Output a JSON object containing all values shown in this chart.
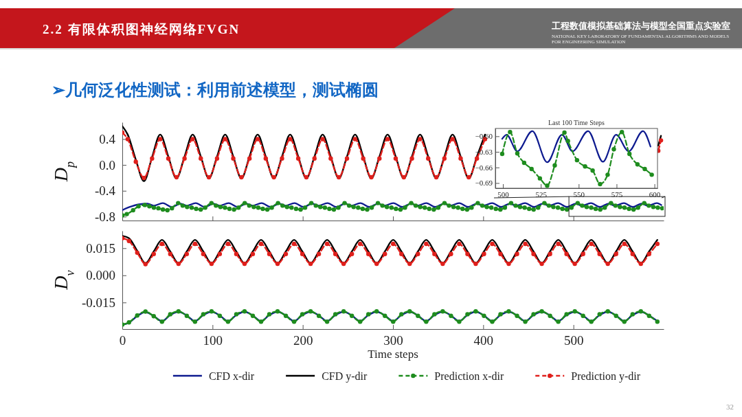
{
  "chart_data": [
    {
      "type": "line",
      "title": "➢几何泛化性测试：利用前述模型，测试椭圆",
      "annotations": [
        "2.2 有限体积图神经网络FVGN",
        "工程数值模拟基础算法与模型全国重点实验室",
        "NATIONAL KEY LABORATORY OF FUNDAMENTAL ALGORITHMS AND MODELS FOR ENGINEERING SIMULATION",
        "32"
      ],
      "ylabel": "D$_{p}$",
      "xlim": [
        0,
        600
      ],
      "ylim": [
        -0.86,
        0.66
      ],
      "xticks": [
        0,
        100,
        200,
        300,
        400,
        500
      ],
      "yticks": [
        0.4,
        {
          "value": 0,
          "label": "0.0"
        },
        -0.4,
        -0.8
      ],
      "tick_labels": "y",
      "series": [
        {
          "color": "#0d1a8f",
          "line_style": "solid",
          "marker": "none",
          "x": [
            0,
            8.4,
            18.4,
            27.9,
            34.9,
            44.9,
            54.9,
            64.4,
            71.4,
            81.4,
            91.4,
            100.9,
            107.9,
            117.9,
            127.9,
            137.4,
            144.4,
            154.4,
            164.4,
            173.9,
            180.9,
            190.9,
            200.9,
            210.4,
            217.4,
            227.4,
            237.4,
            246.9,
            253.9,
            263.9,
            273.9,
            283.4,
            290.4,
            300.4,
            310.4,
            319.9,
            326.9,
            336.9,
            346.9,
            356.4,
            363.4,
            373.4,
            383.4,
            392.9,
            399.9,
            409.9,
            419.9,
            429.4,
            436.4,
            446.4,
            456.4,
            465.9,
            472.9,
            482.9,
            492.9,
            502.4,
            509.4,
            519.4,
            529.4,
            538.9,
            545.9,
            555.9,
            565.9,
            575.4,
            582.4,
            592.4,
            597.4
          ],
          "values": [
            -0.7,
            -0.65,
            -0.61,
            -0.6,
            -0.63,
            -0.59,
            -0.65,
            -0.6,
            -0.63,
            -0.59,
            -0.65,
            -0.6,
            -0.63,
            -0.59,
            -0.65,
            -0.6,
            -0.63,
            -0.59,
            -0.65,
            -0.6,
            -0.63,
            -0.59,
            -0.65,
            -0.6,
            -0.63,
            -0.59,
            -0.65,
            -0.6,
            -0.63,
            -0.59,
            -0.65,
            -0.6,
            -0.63,
            -0.59,
            -0.65,
            -0.6,
            -0.63,
            -0.59,
            -0.65,
            -0.6,
            -0.63,
            -0.59,
            -0.65,
            -0.6,
            -0.63,
            -0.59,
            -0.65,
            -0.6,
            -0.63,
            -0.59,
            -0.65,
            -0.6,
            -0.63,
            -0.59,
            -0.65,
            -0.6,
            -0.63,
            -0.59,
            -0.65,
            -0.6,
            -0.63,
            -0.59,
            -0.65,
            -0.6,
            -0.63,
            -0.59,
            -0.62
          ]
        },
        {
          "color": "#000000",
          "line_style": "solid",
          "marker": "none",
          "x": [
            0,
            6,
            15,
            24,
            33,
            42,
            51,
            60,
            69,
            78,
            87,
            96,
            105,
            114,
            123,
            132,
            141,
            150,
            159,
            168,
            177,
            186,
            195,
            204,
            213,
            222,
            231,
            240,
            249,
            258,
            267,
            276,
            285,
            294,
            303,
            312,
            321,
            330,
            339,
            348,
            357,
            366,
            375,
            384,
            393,
            402,
            411,
            594,
            597
          ],
          "values": [
            0.6,
            0.47,
            0.08,
            -0.25,
            0.12,
            0.47,
            0.13,
            -0.21,
            0.13,
            0.47,
            0.13,
            -0.21,
            0.13,
            0.47,
            0.13,
            -0.21,
            0.13,
            0.47,
            0.13,
            -0.21,
            0.13,
            0.47,
            0.13,
            -0.21,
            0.13,
            0.47,
            0.13,
            -0.21,
            0.13,
            0.47,
            0.13,
            -0.21,
            0.13,
            0.47,
            0.13,
            -0.21,
            0.13,
            0.47,
            0.13,
            -0.21,
            0.13,
            0.47,
            0.13,
            -0.21,
            0.13,
            0.47,
            null,
            0.3,
            0.45
          ]
        },
        {
          "color": "#1e8c1e",
          "line_style": "dashed",
          "marker": "circle",
          "x": [
            0,
            5,
            12,
            18,
            25,
            30,
            35,
            40,
            45,
            50,
            55,
            61.9,
            66.9,
            71.9,
            76.9,
            81.9,
            86.9,
            91.9,
            98.8,
            103.8,
            108.8,
            113.8,
            118.8,
            123.8,
            128.8,
            135.7,
            140.7,
            145.7,
            150.7,
            155.7,
            160.7,
            165.7,
            172.6,
            177.6,
            182.6,
            187.6,
            192.6,
            197.6,
            202.6,
            209.5,
            214.5,
            219.5,
            224.5,
            229.5,
            234.5,
            239.5,
            246.4,
            251.4,
            256.4,
            261.4,
            266.4,
            271.4,
            276.4,
            283.3,
            288.3,
            293.3,
            298.3,
            303.3,
            308.3,
            313.3,
            320.2,
            325.2,
            330.2,
            335.2,
            340.2,
            345.2,
            350.2,
            357.1,
            362.1,
            367.1,
            372.1,
            377.1,
            382.1,
            387.1,
            394,
            399,
            404,
            409,
            414,
            419,
            424,
            430.9,
            435.9,
            440.9,
            445.9,
            450.9,
            455.9,
            460.9,
            467.8,
            472.8,
            477.8,
            482.8,
            487.8,
            492.8,
            497.8,
            504.7,
            509.7,
            514.7,
            519.7,
            524.7,
            529.7,
            534.7,
            541.6,
            546.6,
            551.6,
            556.6,
            561.6,
            566.6,
            571.6,
            578.5,
            583.5,
            588.5,
            593.5,
            598.5
          ],
          "values": [
            -0.78,
            -0.76,
            -0.7,
            -0.64,
            -0.62,
            -0.64,
            -0.66,
            -0.67,
            -0.69,
            -0.7,
            -0.67,
            -0.59,
            -0.63,
            -0.65,
            -0.66,
            -0.68,
            -0.69,
            -0.66,
            -0.59,
            -0.63,
            -0.65,
            -0.66,
            -0.68,
            -0.69,
            -0.66,
            -0.59,
            -0.63,
            -0.65,
            -0.66,
            -0.68,
            -0.69,
            -0.66,
            -0.59,
            -0.63,
            -0.65,
            -0.66,
            -0.68,
            -0.69,
            -0.66,
            -0.59,
            -0.63,
            -0.65,
            -0.66,
            -0.68,
            -0.69,
            -0.66,
            -0.59,
            -0.63,
            -0.65,
            -0.66,
            -0.68,
            -0.69,
            -0.66,
            -0.59,
            -0.63,
            -0.65,
            -0.66,
            -0.68,
            -0.69,
            -0.66,
            -0.59,
            -0.63,
            -0.65,
            -0.66,
            -0.68,
            -0.69,
            -0.66,
            -0.59,
            -0.63,
            -0.65,
            -0.66,
            -0.68,
            -0.69,
            -0.66,
            -0.59,
            -0.63,
            -0.65,
            -0.66,
            -0.68,
            -0.69,
            -0.66,
            -0.59,
            -0.63,
            -0.65,
            -0.66,
            -0.68,
            -0.69,
            -0.66,
            -0.59,
            -0.63,
            -0.65,
            -0.66,
            -0.68,
            -0.69,
            -0.66,
            -0.59,
            -0.63,
            -0.65,
            -0.66,
            -0.68,
            -0.69,
            -0.66,
            -0.59,
            -0.63,
            -0.65,
            -0.66,
            -0.68,
            -0.69,
            -0.66,
            -0.59,
            -0.63,
            -0.65,
            -0.66,
            -0.67
          ]
        },
        {
          "color": "#e0201c",
          "line_style": "dashed",
          "marker": "circle",
          "x": [
            0,
            6,
            15,
            24,
            33,
            42,
            51,
            60,
            69,
            78,
            87,
            96,
            105,
            114,
            123,
            132,
            141,
            150,
            159,
            168,
            177,
            186,
            195,
            204,
            213,
            222,
            231,
            240,
            249,
            258,
            267,
            276,
            285,
            294,
            303,
            312,
            321,
            330,
            339,
            348,
            357,
            366,
            375,
            384,
            393,
            402,
            411,
            594,
            597
          ],
          "values": [
            0.5,
            0.4,
            0.05,
            -0.2,
            0.1,
            0.4,
            0.1,
            -0.19,
            0.1,
            0.4,
            0.1,
            -0.19,
            0.1,
            0.4,
            0.1,
            -0.19,
            0.1,
            0.4,
            0.1,
            -0.19,
            0.1,
            0.4,
            0.1,
            -0.19,
            0.1,
            0.4,
            0.1,
            -0.19,
            0.1,
            0.4,
            0.1,
            -0.19,
            0.1,
            0.4,
            0.1,
            -0.19,
            0.1,
            0.4,
            0.1,
            -0.19,
            0.1,
            0.4,
            0.1,
            -0.19,
            0.1,
            0.4,
            null,
            0.22,
            0.38
          ]
        }
      ]
    },
    {
      "type": "line",
      "xlabel": "Time steps",
      "ylabel": "D$_{v}$",
      "xlim": [
        0,
        600
      ],
      "ylim": [
        -0.0297,
        0.0246
      ],
      "xticks": [
        0,
        100,
        200,
        300,
        400,
        500
      ],
      "yticks": [
        0.015,
        {
          "value": 0,
          "label": "0.000"
        },
        -0.015
      ],
      "legend": "bottom",
      "x": [
        0,
        7.4,
        16.55,
        25.7,
        34.85,
        44,
        53.15,
        62.3,
        71.45,
        80.6,
        89.75,
        98.9,
        108.05,
        117.2,
        126.35,
        135.5,
        144.65,
        153.8,
        162.95,
        172.1,
        181.25,
        190.4,
        199.55,
        208.7,
        217.85,
        227,
        236.15,
        245.3,
        254.45,
        263.6,
        272.75,
        281.9,
        291.05,
        300.2,
        309.35,
        318.5,
        327.65,
        336.8,
        345.95,
        355.1,
        364.25,
        373.4,
        382.55,
        391.7,
        400.85,
        410,
        419.15,
        428.3,
        437.45,
        446.6,
        455.75,
        464.9,
        474.05,
        483.2,
        492.35,
        501.5,
        510.65,
        519.8,
        528.95,
        538.1,
        547.25,
        556.4,
        565.55,
        574.7,
        583.85,
        593
      ],
      "series": [
        {
          "name": "CFD x-dir",
          "color": "#0d1a8f",
          "line_style": "solid",
          "marker": "none",
          "values": [
            -0.0274,
            -0.0262,
            -0.0225,
            -0.0203,
            -0.0225,
            -0.0253,
            -0.022,
            -0.0201,
            -0.0222,
            -0.0253,
            -0.022,
            -0.0201,
            -0.0222,
            -0.0253,
            -0.022,
            -0.0201,
            -0.0222,
            -0.0253,
            -0.022,
            -0.0201,
            -0.0222,
            -0.0253,
            -0.022,
            -0.0201,
            -0.0222,
            -0.0253,
            -0.022,
            -0.0201,
            -0.0222,
            -0.0253,
            -0.022,
            -0.0201,
            -0.0222,
            -0.0253,
            -0.022,
            -0.0201,
            -0.0222,
            -0.0253,
            -0.022,
            -0.0201,
            -0.0222,
            -0.0253,
            -0.022,
            -0.0201,
            -0.0222,
            -0.0253,
            -0.022,
            -0.0201,
            -0.0222,
            -0.0253,
            -0.022,
            -0.0201,
            -0.0222,
            -0.0253,
            -0.022,
            -0.0201,
            -0.0222,
            -0.0253,
            -0.022,
            -0.0201,
            -0.0222,
            -0.0253,
            -0.022,
            -0.0201,
            -0.0222,
            -0.0253
          ]
        },
        {
          "name": "CFD y-dir",
          "color": "#000000",
          "line_style": "solid",
          "marker": "none",
          "values": [
            0.0218,
            0.0205,
            0.0135,
            0.0067,
            0.0132,
            0.0196,
            0.0132,
            0.0067,
            0.0132,
            0.0196,
            0.0132,
            0.0067,
            0.0132,
            0.0196,
            0.0132,
            0.0067,
            0.0132,
            0.0196,
            0.0132,
            0.0067,
            0.0132,
            0.0196,
            0.0132,
            0.0067,
            0.0132,
            0.0196,
            0.0132,
            0.0067,
            0.0132,
            0.0196,
            0.0132,
            0.0067,
            0.0132,
            0.0196,
            0.0132,
            0.0067,
            0.0132,
            0.0196,
            0.0132,
            0.0067,
            0.0132,
            0.0196,
            0.0132,
            0.0067,
            0.0132,
            0.0196,
            0.0132,
            0.0067,
            0.0132,
            0.0196,
            0.0132,
            0.0067,
            0.0132,
            0.0196,
            0.0132,
            0.0067,
            0.0132,
            0.0196,
            0.0132,
            0.0067,
            0.0132,
            0.0196,
            0.0132,
            0.0067,
            0.0132,
            0.0196
          ]
        },
        {
          "name": "Prediction x-dir",
          "color": "#1e8c1e",
          "line_style": "dashed",
          "marker": "circle",
          "values": [
            -0.0272,
            -0.026,
            -0.0222,
            -0.02,
            -0.0226,
            -0.0256,
            -0.0215,
            -0.0199,
            -0.0224,
            -0.0256,
            -0.0215,
            -0.0199,
            -0.0224,
            -0.0256,
            -0.0215,
            -0.0199,
            -0.0224,
            -0.0256,
            -0.0215,
            -0.0199,
            -0.0224,
            -0.0256,
            -0.0215,
            -0.0199,
            -0.0224,
            -0.0256,
            -0.0215,
            -0.0199,
            -0.0224,
            -0.0256,
            -0.0215,
            -0.0199,
            -0.0224,
            -0.0256,
            -0.0215,
            -0.0199,
            -0.0224,
            -0.0256,
            -0.0215,
            -0.0199,
            -0.0224,
            -0.0256,
            -0.0215,
            -0.0199,
            -0.0224,
            -0.0256,
            -0.0215,
            -0.0199,
            -0.0224,
            -0.0256,
            -0.0215,
            -0.0199,
            -0.0224,
            -0.0256,
            -0.0215,
            -0.0199,
            -0.0224,
            -0.0256,
            -0.0215,
            -0.0199,
            -0.0224,
            -0.0256,
            -0.0215,
            -0.0199,
            -0.0224,
            -0.0256
          ]
        },
        {
          "name": "Prediction y-dir",
          "color": "#e0201c",
          "line_style": "dashed",
          "marker": "circle",
          "values": [
            0.0205,
            0.019,
            0.0125,
            0.0062,
            0.0118,
            0.0174,
            0.0118,
            0.0064,
            0.0118,
            0.0174,
            0.0118,
            0.0064,
            0.0118,
            0.0174,
            0.0118,
            0.0064,
            0.0118,
            0.0174,
            0.0118,
            0.0064,
            0.0118,
            0.0174,
            0.0118,
            0.0064,
            0.0118,
            0.0174,
            0.0118,
            0.0064,
            0.0118,
            0.0174,
            0.0118,
            0.0064,
            0.0118,
            0.0174,
            0.0118,
            0.0064,
            0.0118,
            0.0174,
            0.0118,
            0.0064,
            0.0118,
            0.0174,
            0.0118,
            0.0064,
            0.0118,
            0.0174,
            0.0118,
            0.0064,
            0.0118,
            0.0174,
            0.0118,
            0.0064,
            0.0118,
            0.0174,
            0.0118,
            0.0064,
            0.0118,
            0.0174,
            0.0118,
            0.0064,
            0.0118,
            0.0174,
            0.0118,
            0.0064,
            0.0118,
            0.0174
          ]
        }
      ]
    },
    {
      "type": "line",
      "title": "Last 100 Time Steps",
      "xlim": [
        495,
        602
      ],
      "ylim": [
        -0.7,
        -0.585
      ],
      "xticks": [
        500,
        525,
        550,
        575,
        600
      ],
      "yticks": [
        {
          "value": -0.6,
          "label": "−0.60"
        },
        {
          "value": -0.63,
          "label": "−0.63"
        },
        {
          "value": -0.66,
          "label": "−0.66"
        },
        {
          "value": -0.69,
          "label": "−0.69"
        }
      ],
      "series": [
        {
          "color": "#0d1a8f",
          "line_style": "solid",
          "marker": "none",
          "x": [
            499.5,
            502.4,
            509.5,
            519.4,
            529.2,
            539,
            545.9,
            556.2,
            566,
            574.7,
            583,
            592.4,
            597.4
          ],
          "values": [
            -0.605,
            -0.597,
            -0.629,
            -0.59,
            -0.65,
            -0.597,
            -0.629,
            -0.59,
            -0.649,
            -0.597,
            -0.629,
            -0.59,
            -0.62
          ]
        },
        {
          "color": "#1e8c1e",
          "line_style": "dashed",
          "marker": "circle",
          "x": [
            499.5,
            504.7,
            509.5,
            514,
            518.9,
            524.4,
            529.2,
            534.2,
            540.6,
            542.9,
            548.9,
            554.2,
            559.2,
            564.1,
            569.1,
            573.2,
            578.5,
            583.5,
            588.8,
            593.6,
            598.2
          ],
          "values": [
            -0.634,
            -0.592,
            -0.633,
            -0.651,
            -0.663,
            -0.681,
            -0.695,
            -0.656,
            -0.593,
            -0.609,
            -0.646,
            -0.658,
            -0.666,
            -0.692,
            -0.674,
            -0.625,
            -0.592,
            -0.634,
            -0.654,
            -0.663,
            -0.674
          ]
        }
      ]
    }
  ]
}
